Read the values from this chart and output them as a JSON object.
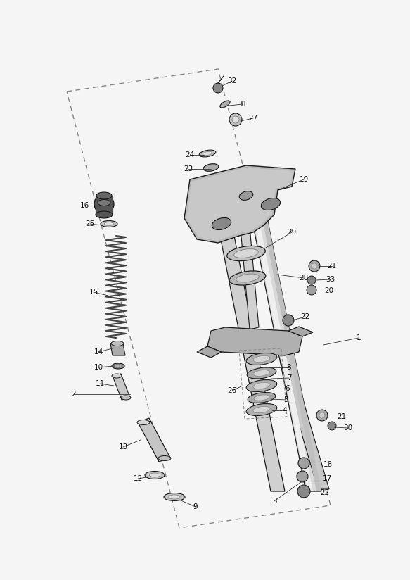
{
  "bg_color": "#f5f5f5",
  "line_color": "#1a1a1a",
  "label_color": "#111111",
  "label_fontsize": 7.5,
  "fig_width": 5.83,
  "fig_height": 8.24,
  "dpi": 100
}
